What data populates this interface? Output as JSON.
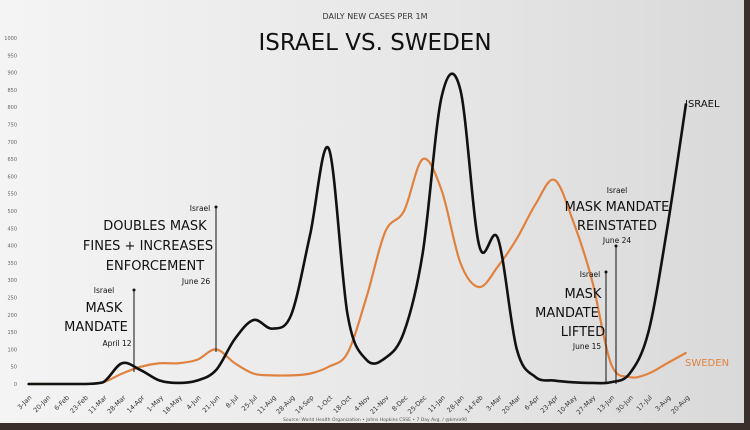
{
  "chart_data": {
    "type": "line",
    "subtitle": "DAILY NEW CASES PER 1M",
    "title": "ISRAEL VS. SWEDEN",
    "xlabel": "",
    "ylabel": "",
    "ylim": [
      0,
      1000
    ],
    "yticks": [
      0,
      50,
      100,
      150,
      200,
      250,
      300,
      350,
      400,
      450,
      500,
      550,
      600,
      650,
      700,
      750,
      800,
      850,
      900,
      950,
      1000
    ],
    "grid": false,
    "categories": [
      "3-Jan",
      "20-Jan",
      "6-Feb",
      "23-Feb",
      "11-Mar",
      "28-Mar",
      "14-Apr",
      "1-May",
      "18-May",
      "4-Jun",
      "21-Jun",
      "8-Jul",
      "25-Jul",
      "11-Aug",
      "28-Aug",
      "14-Sep",
      "1-Oct",
      "18-Oct",
      "4-Nov",
      "21-Nov",
      "8-Dec",
      "25-Dec",
      "11-Jan",
      "28-Jan",
      "14-Feb",
      "3-Mar",
      "20-Mar",
      "6-Apr",
      "23-Apr",
      "10-May",
      "27-May",
      "13-Jun",
      "30-Jun",
      "17-Jul",
      "3-Aug",
      "20-Aug"
    ],
    "series": [
      {
        "name": "ISRAEL",
        "color": "#111111",
        "values": [
          0,
          0,
          0,
          0,
          5,
          60,
          40,
          10,
          3,
          10,
          40,
          130,
          185,
          160,
          200,
          430,
          680,
          200,
          70,
          75,
          150,
          380,
          830,
          850,
          400,
          420,
          100,
          20,
          10,
          5,
          3,
          5,
          30,
          150,
          450,
          810
        ]
      },
      {
        "name": "SWEDEN",
        "color": "#e0823f",
        "values": [
          0,
          0,
          0,
          0,
          5,
          30,
          50,
          60,
          60,
          70,
          100,
          60,
          30,
          25,
          25,
          30,
          50,
          90,
          250,
          440,
          500,
          650,
          560,
          350,
          280,
          340,
          420,
          520,
          590,
          470,
          300,
          60,
          20,
          30,
          60,
          90
        ]
      }
    ],
    "annotations": [
      {
        "country": "Israel",
        "lines": [
          "MASK",
          "MANDATE"
        ],
        "date": "April 12"
      },
      {
        "country": "Israel",
        "lines": [
          "DOUBLES MASK",
          "FINES + INCREASES",
          "ENFORCEMENT"
        ],
        "date": "June 26"
      },
      {
        "country": "Israel",
        "lines": [
          "MASK MANDATE",
          "REINSTATED"
        ],
        "date": "June 24"
      },
      {
        "country": "Israel",
        "lines": [
          "MASK",
          "MANDATE",
          "LIFTED"
        ],
        "date": "June 15"
      }
    ],
    "source": "Source: World Health Organization • Johns Hopkins CSSE • 7 Day Avg. / @kmro90"
  }
}
